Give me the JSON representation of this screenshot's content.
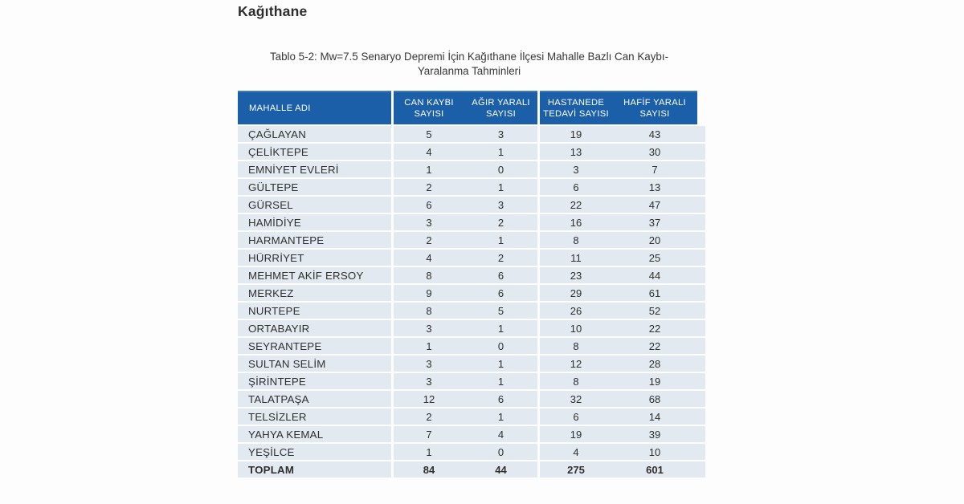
{
  "page": {
    "title": "Kağıthane"
  },
  "caption": {
    "line1": "Tablo 5-2: Mw=7.5 Senaryo Depremi İçin Kağıthane İlçesi Mahalle Bazlı Can Kaybı-",
    "line2": "Yaralanma Tahminleri"
  },
  "table": {
    "columns": [
      "MAHALLE ADI",
      "CAN KAYBI SAYISI",
      "AĞIR YARALI SAYISI",
      "HASTANEDE TEDAVİ SAYISI",
      "HAFİF YARALI SAYISI"
    ],
    "rows": [
      {
        "name": "ÇAĞLAYAN",
        "values": [
          5,
          3,
          19,
          43
        ]
      },
      {
        "name": "ÇELİKTEPE",
        "values": [
          4,
          1,
          13,
          30
        ]
      },
      {
        "name": "EMNİYET EVLERİ",
        "values": [
          1,
          0,
          3,
          7
        ]
      },
      {
        "name": "GÜLTEPE",
        "values": [
          2,
          1,
          6,
          13
        ]
      },
      {
        "name": "GÜRSEL",
        "values": [
          6,
          3,
          22,
          47
        ]
      },
      {
        "name": "HAMİDİYE",
        "values": [
          3,
          2,
          16,
          37
        ]
      },
      {
        "name": "HARMANTEPE",
        "values": [
          2,
          1,
          8,
          20
        ]
      },
      {
        "name": "HÜRRİYET",
        "values": [
          4,
          2,
          11,
          25
        ]
      },
      {
        "name": "MEHMET AKİF ERSOY",
        "values": [
          8,
          6,
          23,
          44
        ]
      },
      {
        "name": "MERKEZ",
        "values": [
          9,
          6,
          29,
          61
        ]
      },
      {
        "name": "NURTEPE",
        "values": [
          8,
          5,
          26,
          52
        ]
      },
      {
        "name": "ORTABAYIR",
        "values": [
          3,
          1,
          10,
          22
        ]
      },
      {
        "name": "SEYRANTEPE",
        "values": [
          1,
          0,
          8,
          22
        ]
      },
      {
        "name": "SULTAN SELİM",
        "values": [
          3,
          1,
          12,
          28
        ]
      },
      {
        "name": "ŞİRİNTEPE",
        "values": [
          3,
          1,
          8,
          19
        ]
      },
      {
        "name": "TALATPAŞA",
        "values": [
          12,
          6,
          32,
          68
        ]
      },
      {
        "name": "TELSİZLER",
        "values": [
          2,
          1,
          6,
          14
        ]
      },
      {
        "name": "YAHYA KEMAL",
        "values": [
          7,
          4,
          19,
          39
        ]
      },
      {
        "name": "YEŞİLCE",
        "values": [
          1,
          0,
          4,
          10
        ]
      }
    ],
    "total": {
      "name": "TOPLAM",
      "values": [
        84,
        44,
        275,
        601
      ]
    }
  },
  "colors": {
    "header_bg": "#1b5fa8",
    "header_text": "#ffffff",
    "row_bg": "#e3e9f0",
    "body_text": "#2f2f2f",
    "title_text": "#2d2d2d"
  }
}
